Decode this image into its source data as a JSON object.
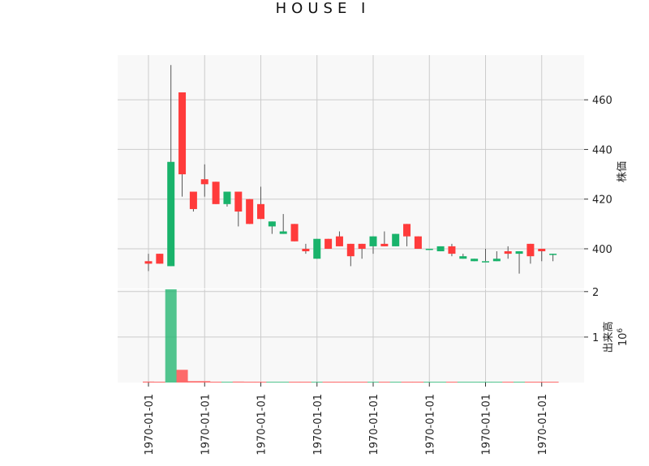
{
  "chart_data": [
    {
      "type": "candlestick",
      "title": "HOUSE I",
      "ylabel": "株価",
      "ylim": [
        384,
        478
      ],
      "yticks": [
        400,
        420,
        440,
        460
      ],
      "xticklabels": [
        "1970-01-01",
        "1970-01-01",
        "1970-01-01",
        "1970-01-01",
        "1970-01-01",
        "1970-01-01",
        "1970-01-01",
        "1970-01-01"
      ],
      "grid": true,
      "colors": {
        "up": "#19b36b",
        "down": "#ff3b3b",
        "wick": "#555555",
        "panel_bg": "#f8f8f8",
        "grid": "#cccccc"
      },
      "candles": [
        {
          "open": 395,
          "close": 394,
          "high": 398,
          "low": 391
        },
        {
          "open": 398,
          "close": 394,
          "high": 398,
          "low": 394
        },
        {
          "open": 393,
          "close": 435,
          "high": 474,
          "low": 393
        },
        {
          "open": 463,
          "close": 430,
          "high": 463,
          "low": 421
        },
        {
          "open": 423,
          "close": 416,
          "high": 423,
          "low": 415
        },
        {
          "open": 428,
          "close": 426,
          "high": 434,
          "low": 421
        },
        {
          "open": 427,
          "close": 418,
          "high": 427,
          "low": 418
        },
        {
          "open": 418,
          "close": 423,
          "high": 423,
          "low": 417
        },
        {
          "open": 423,
          "close": 415,
          "high": 423,
          "low": 409
        },
        {
          "open": 420,
          "close": 410,
          "high": 420,
          "low": 410
        },
        {
          "open": 418,
          "close": 412,
          "high": 425,
          "low": 412
        },
        {
          "open": 409,
          "close": 411,
          "high": 411,
          "low": 406
        },
        {
          "open": 406,
          "close": 407,
          "high": 414,
          "low": 406
        },
        {
          "open": 410,
          "close": 403,
          "high": 410,
          "low": 403
        },
        {
          "open": 400,
          "close": 399,
          "high": 402,
          "low": 398
        },
        {
          "open": 396,
          "close": 404,
          "high": 404,
          "low": 396
        },
        {
          "open": 404,
          "close": 400,
          "high": 404,
          "low": 400
        },
        {
          "open": 405,
          "close": 401,
          "high": 407,
          "low": 401
        },
        {
          "open": 402,
          "close": 397,
          "high": 402,
          "low": 393
        },
        {
          "open": 402,
          "close": 400,
          "high": 402,
          "low": 396
        },
        {
          "open": 401,
          "close": 405,
          "high": 405,
          "low": 398
        },
        {
          "open": 402,
          "close": 401,
          "high": 407,
          "low": 401
        },
        {
          "open": 401,
          "close": 406,
          "high": 406,
          "low": 401
        },
        {
          "open": 410,
          "close": 405,
          "high": 410,
          "low": 401
        },
        {
          "open": 405,
          "close": 400,
          "high": 405,
          "low": 400
        },
        {
          "open": 400,
          "close": 400,
          "high": 400,
          "low": 400
        },
        {
          "open": 399,
          "close": 401,
          "high": 401,
          "low": 399
        },
        {
          "open": 401,
          "close": 398,
          "high": 402,
          "low": 397
        },
        {
          "open": 396,
          "close": 397,
          "high": 398,
          "low": 396
        },
        {
          "open": 395,
          "close": 396,
          "high": 396,
          "low": 395
        },
        {
          "open": 395,
          "close": 395,
          "high": 400,
          "low": 395
        },
        {
          "open": 395,
          "close": 396,
          "high": 399,
          "low": 395
        },
        {
          "open": 399,
          "close": 398,
          "high": 401,
          "low": 396
        },
        {
          "open": 398,
          "close": 399,
          "high": 399,
          "low": 390
        },
        {
          "open": 402,
          "close": 397,
          "high": 402,
          "low": 394
        },
        {
          "open": 400,
          "close": 399,
          "high": 400,
          "low": 395
        },
        {
          "open": 398,
          "close": 398,
          "high": 398,
          "low": 395
        }
      ]
    },
    {
      "type": "bar",
      "ylabel": "出来高",
      "yexponent_base": "10",
      "yexponent": "6",
      "ylim": [
        0,
        2.05
      ],
      "yticks": [
        1,
        2
      ],
      "grid": true,
      "values": [
        0.02,
        0.0,
        2.08,
        0.28,
        0.03,
        0.03,
        0.01,
        0.01,
        0.02,
        0.01,
        0.01,
        0.01,
        0.01,
        0.01,
        0.01,
        0.01,
        0.01,
        0.01,
        0.01,
        0.01,
        0.01,
        0.01,
        0.01,
        0.01,
        0.01,
        0.01,
        0.01,
        0.01,
        0.01,
        0.01,
        0.01,
        0.01,
        0.01,
        0.01,
        0.01,
        0.01,
        0.01
      ],
      "directions": [
        "down",
        "down",
        "up",
        "down",
        "down",
        "down",
        "down",
        "up",
        "down",
        "down",
        "down",
        "up",
        "up",
        "down",
        "down",
        "up",
        "down",
        "down",
        "down",
        "down",
        "up",
        "down",
        "up",
        "down",
        "down",
        "up",
        "up",
        "down",
        "up",
        "up",
        "up",
        "up",
        "down",
        "up",
        "down",
        "down",
        "down"
      ]
    }
  ]
}
